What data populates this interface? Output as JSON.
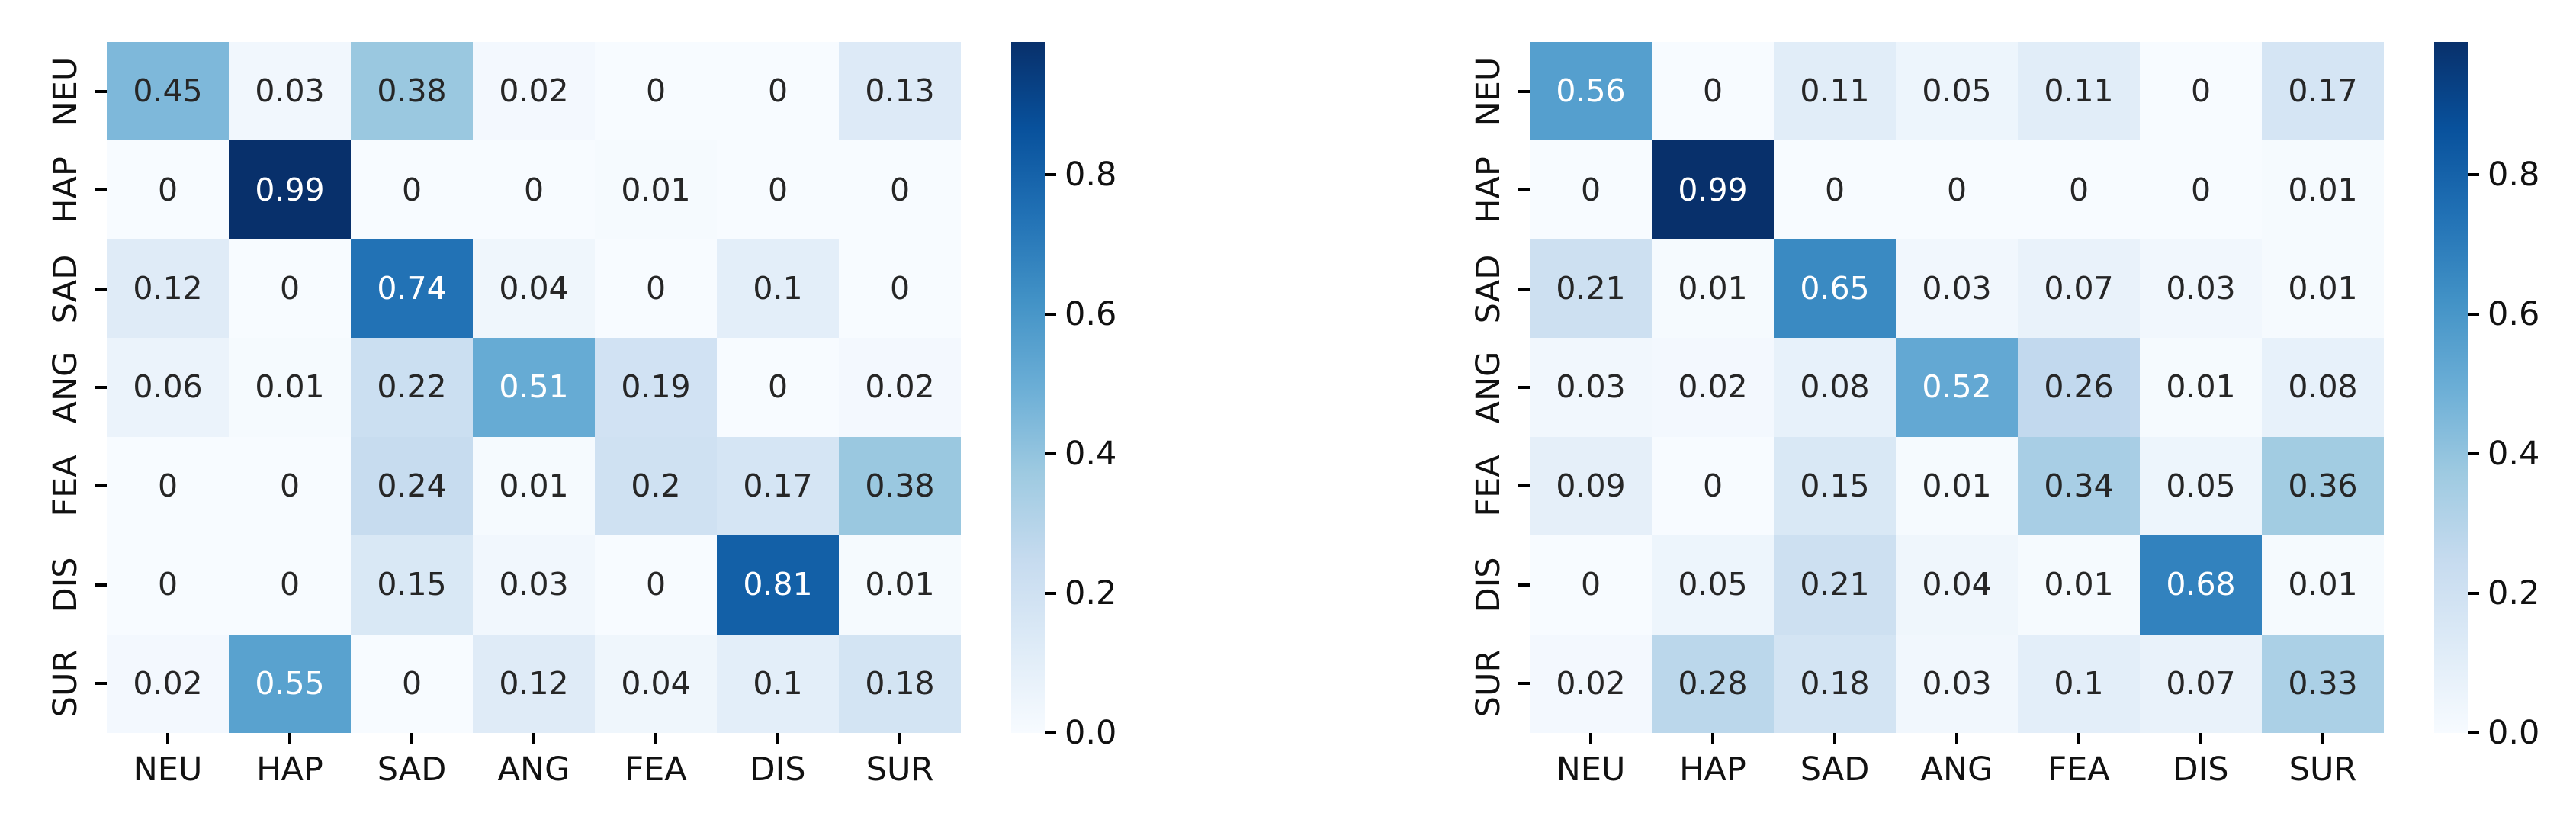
{
  "figure": {
    "background": "#ffffff",
    "annotation_dark": "#262626",
    "annotation_light": "#ffffff",
    "tick_color": "#000000",
    "label_color": "#111111",
    "colormap_anchors": [
      [
        0.0,
        "#f7fbff"
      ],
      [
        0.125,
        "#deebf7"
      ],
      [
        0.25,
        "#c6dbef"
      ],
      [
        0.375,
        "#9ecae1"
      ],
      [
        0.5,
        "#6baed6"
      ],
      [
        0.625,
        "#4292c6"
      ],
      [
        0.75,
        "#2171b5"
      ],
      [
        0.875,
        "#08519c"
      ],
      [
        1.0,
        "#08306b"
      ]
    ]
  },
  "chart_data": [
    {
      "type": "heatmap",
      "name": "confusion-matrix-left",
      "title": "",
      "x_categories": [
        "NEU",
        "HAP",
        "SAD",
        "ANG",
        "FEA",
        "DIS",
        "SUR"
      ],
      "y_categories": [
        "NEU",
        "HAP",
        "SAD",
        "ANG",
        "FEA",
        "DIS",
        "SUR"
      ],
      "values": [
        [
          0.45,
          0.03,
          0.38,
          0.02,
          0,
          0,
          0.13
        ],
        [
          0,
          0.99,
          0,
          0,
          0.01,
          0,
          0
        ],
        [
          0.12,
          0,
          0.74,
          0.04,
          0,
          0.1,
          0
        ],
        [
          0.06,
          0.01,
          0.22,
          0.51,
          0.19,
          0,
          0.02
        ],
        [
          0,
          0,
          0.24,
          0.01,
          0.2,
          0.17,
          0.38
        ],
        [
          0,
          0,
          0.15,
          0.03,
          0,
          0.81,
          0.01
        ],
        [
          0.02,
          0.55,
          0,
          0.12,
          0.04,
          0.1,
          0.18
        ]
      ],
      "colormap": "Blues",
      "vmin": 0.0,
      "vmax": 0.99,
      "grid": false,
      "legend_position": "right-colorbar",
      "colorbar_ticks": [
        0.0,
        0.2,
        0.4,
        0.6,
        0.8
      ],
      "colorbar_tick_labels": [
        "0.0",
        "0.2",
        "0.4",
        "0.6",
        "0.8"
      ],
      "xlabel": "",
      "ylabel": ""
    },
    {
      "type": "heatmap",
      "name": "confusion-matrix-right",
      "title": "",
      "x_categories": [
        "NEU",
        "HAP",
        "SAD",
        "ANG",
        "FEA",
        "DIS",
        "SUR"
      ],
      "y_categories": [
        "NEU",
        "HAP",
        "SAD",
        "ANG",
        "FEA",
        "DIS",
        "SUR"
      ],
      "values": [
        [
          0.56,
          0,
          0.11,
          0.05,
          0.11,
          0,
          0.17
        ],
        [
          0,
          0.99,
          0,
          0,
          0,
          0,
          0.01
        ],
        [
          0.21,
          0.01,
          0.65,
          0.03,
          0.07,
          0.03,
          0.01
        ],
        [
          0.03,
          0.02,
          0.08,
          0.52,
          0.26,
          0.01,
          0.08
        ],
        [
          0.09,
          0,
          0.15,
          0.01,
          0.34,
          0.05,
          0.36
        ],
        [
          0,
          0.05,
          0.21,
          0.04,
          0.01,
          0.68,
          0.01
        ],
        [
          0.02,
          0.28,
          0.18,
          0.03,
          0.1,
          0.07,
          0.33
        ]
      ],
      "colormap": "Blues",
      "vmin": 0.0,
      "vmax": 0.99,
      "grid": false,
      "legend_position": "right-colorbar",
      "colorbar_ticks": [
        0.0,
        0.2,
        0.4,
        0.6,
        0.8
      ],
      "colorbar_tick_labels": [
        "0.0",
        "0.2",
        "0.4",
        "0.6",
        "0.8"
      ],
      "xlabel": "",
      "ylabel": ""
    }
  ]
}
